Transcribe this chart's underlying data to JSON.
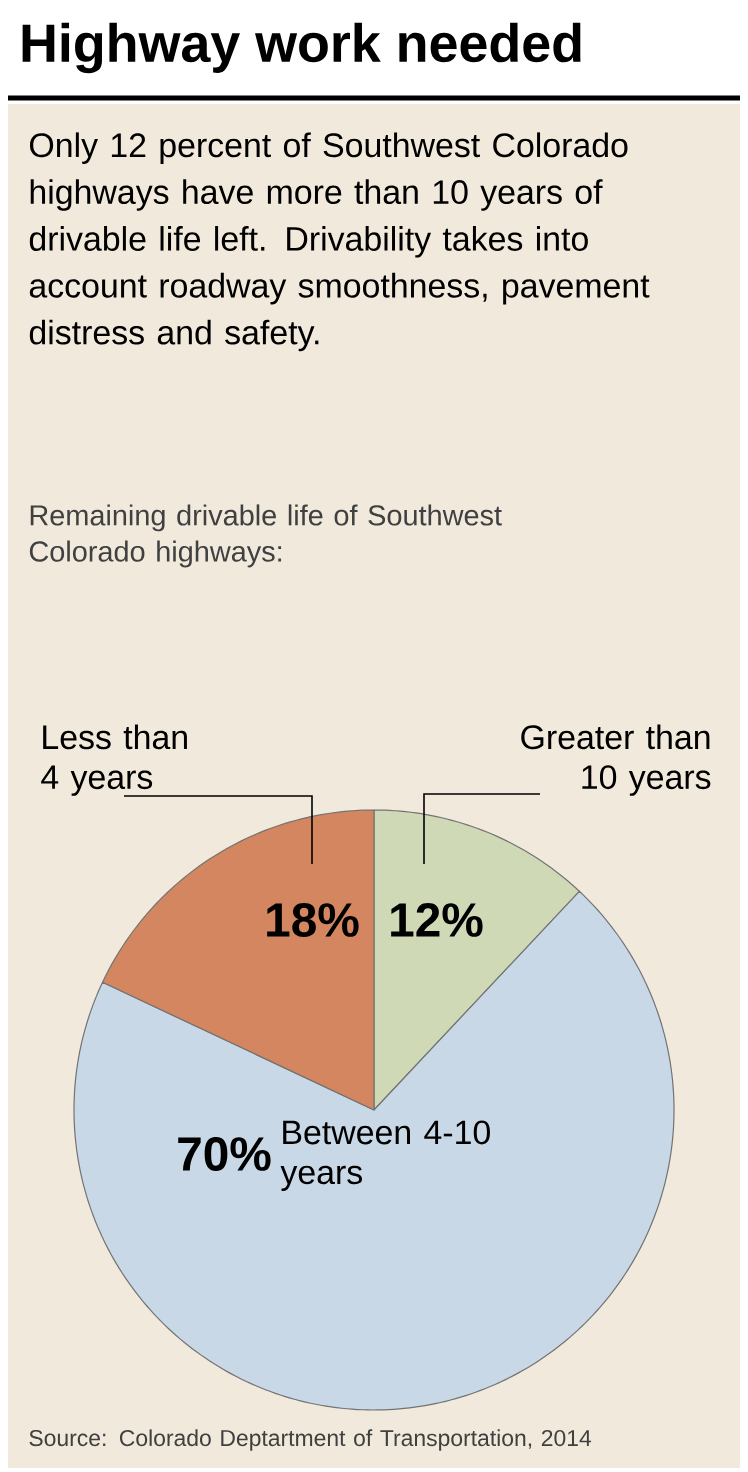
{
  "chart_data": {
    "type": "pie",
    "title": "Highway work needed",
    "subtitle": "Only 12 percent of Southwest Colorado highways have more than 10 years of drivable life left. Drivability takes into account roadway smoothness, pavement distress and safety.",
    "annotations": [
      "Remaining drivable life of Southwest Colorado highways:",
      "Source: Colorado Deptartment of Transportation, 2014"
    ],
    "categories": [
      "Greater than 10 years",
      "Between 4-10 years",
      "Less than 4 years"
    ],
    "values": [
      12,
      70,
      18
    ],
    "value_labels": [
      "12%",
      "70%",
      "18%"
    ],
    "colors": [
      "#cfd9b6",
      "#c9d8e7",
      "#d3865f"
    ]
  }
}
